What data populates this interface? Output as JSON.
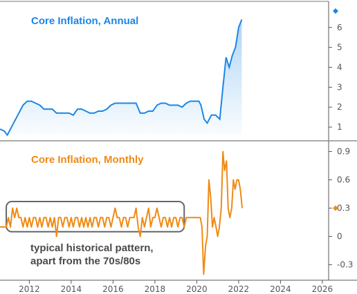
{
  "colors": {
    "annual": "#1a86e8",
    "monthly": "#f08a14",
    "axis": "#555555",
    "box": "#666666"
  },
  "chart_data": [
    {
      "type": "area",
      "title": "Core Inflation, Annual",
      "x_ticks": [
        "2012",
        "2014",
        "2016",
        "2018",
        "2020",
        "2022",
        "2024",
        "2026"
      ],
      "y_ticks": [
        "1",
        "2",
        "3",
        "4",
        "5",
        "6"
      ],
      "ylim": [
        0.45,
        7.1
      ],
      "xlim": [
        2010.6,
        2026.3
      ],
      "last_value_marker": 6.4,
      "series": [
        {
          "x": [
            2010.6,
            2010.8,
            2010.95,
            2011.1,
            2011.3,
            2011.5,
            2011.7,
            2011.9,
            2012.1,
            2012.3,
            2012.5,
            2012.7,
            2012.9,
            2013.1,
            2013.3,
            2013.5,
            2013.7,
            2013.9,
            2014.1,
            2014.3,
            2014.5,
            2014.7,
            2014.9,
            2015.1,
            2015.3,
            2015.5,
            2015.7,
            2015.9,
            2016.1,
            2016.3,
            2016.5,
            2016.7,
            2016.9,
            2017.1,
            2017.3,
            2017.5,
            2017.7,
            2017.9,
            2018.1,
            2018.3,
            2018.5,
            2018.7,
            2018.9,
            2019.1,
            2019.3,
            2019.5,
            2019.7,
            2019.9,
            2020.1,
            2020.2,
            2020.35,
            2020.5,
            2020.7,
            2020.9,
            2021.1,
            2021.25,
            2021.4,
            2021.55,
            2021.7,
            2021.85,
            2022.0,
            2022.15
          ],
          "values": [
            0.9,
            0.8,
            0.6,
            0.9,
            1.3,
            1.7,
            2.1,
            2.3,
            2.3,
            2.2,
            2.1,
            1.9,
            1.9,
            1.9,
            1.7,
            1.7,
            1.7,
            1.7,
            1.6,
            1.9,
            1.9,
            1.8,
            1.7,
            1.7,
            1.8,
            1.8,
            1.9,
            2.1,
            2.2,
            2.2,
            2.2,
            2.2,
            2.2,
            2.2,
            1.7,
            1.7,
            1.8,
            1.8,
            2.1,
            2.2,
            2.2,
            2.1,
            2.1,
            2.1,
            2.0,
            2.2,
            2.3,
            2.3,
            2.3,
            2.1,
            1.4,
            1.2,
            1.6,
            1.6,
            1.4,
            3.0,
            4.5,
            4.0,
            4.6,
            5.0,
            6.0,
            6.4
          ]
        }
      ]
    },
    {
      "type": "line",
      "title": "Core Inflation, Monthly",
      "x_ticks": [
        "2012",
        "2014",
        "2016",
        "2018",
        "2020",
        "2022",
        "2024",
        "2026"
      ],
      "y_ticks": [
        "-0.3",
        "0",
        "0.3",
        "0.6",
        "0.9"
      ],
      "ylim": [
        -0.42,
        0.97
      ],
      "xlim": [
        2010.6,
        2026.3
      ],
      "last_value_marker": 0.3,
      "series": [
        {
          "x": [
            2010.6,
            2010.9,
            2011.0,
            2011.1,
            2011.2,
            2011.3,
            2011.4,
            2011.5,
            2011.6,
            2011.7,
            2011.8,
            2011.9,
            2012.0,
            2012.1,
            2012.2,
            2012.3,
            2012.4,
            2012.5,
            2012.6,
            2012.7,
            2012.8,
            2012.9,
            2013.0,
            2013.1,
            2013.2,
            2013.3,
            2013.4,
            2013.5,
            2013.6,
            2013.7,
            2013.8,
            2013.9,
            2014.0,
            2014.1,
            2014.2,
            2014.3,
            2014.4,
            2014.5,
            2014.6,
            2014.7,
            2014.8,
            2014.9,
            2015.0,
            2015.1,
            2015.2,
            2015.3,
            2015.4,
            2015.5,
            2015.6,
            2015.7,
            2015.8,
            2015.9,
            2016.0,
            2016.1,
            2016.2,
            2016.3,
            2016.4,
            2016.5,
            2016.6,
            2016.7,
            2016.8,
            2016.9,
            2017.0,
            2017.1,
            2017.2,
            2017.3,
            2017.4,
            2017.5,
            2017.6,
            2017.7,
            2017.8,
            2017.9,
            2018.0,
            2018.1,
            2018.2,
            2018.3,
            2018.4,
            2018.5,
            2018.6,
            2018.7,
            2018.8,
            2018.9,
            2019.0,
            2019.1,
            2019.2,
            2019.3,
            2019.4,
            2019.5,
            2019.6,
            2019.7,
            2019.8,
            2019.9,
            2020.0,
            2020.08,
            2020.17,
            2020.25,
            2020.33,
            2020.42,
            2020.5,
            2020.58,
            2020.67,
            2020.75,
            2020.83,
            2020.92,
            2021.0,
            2021.08,
            2021.17,
            2021.25,
            2021.33,
            2021.42,
            2021.5,
            2021.58,
            2021.67,
            2021.75,
            2021.83,
            2021.92,
            2022.0,
            2022.08,
            2022.17
          ],
          "values": [
            0.1,
            0.1,
            0.2,
            0.1,
            0.3,
            0.2,
            0.3,
            0.2,
            0.2,
            0.1,
            0.2,
            0.1,
            0.2,
            0.1,
            0.2,
            0.2,
            0.1,
            0.2,
            0.1,
            0.2,
            0.2,
            0.1,
            0.2,
            0.1,
            0.2,
            0.0,
            0.2,
            0.2,
            0.1,
            0.2,
            0.2,
            0.1,
            0.2,
            0.1,
            0.2,
            0.2,
            0.1,
            0.2,
            0.1,
            0.2,
            0.1,
            0.2,
            0.1,
            0.2,
            0.2,
            0.1,
            0.2,
            0.2,
            0.1,
            0.2,
            0.2,
            0.1,
            0.2,
            0.3,
            0.2,
            0.2,
            0.1,
            0.2,
            0.2,
            0.1,
            0.2,
            0.2,
            0.2,
            0.3,
            0.1,
            0.0,
            0.2,
            0.1,
            0.2,
            0.3,
            0.1,
            0.2,
            0.2,
            0.3,
            0.2,
            0.1,
            0.2,
            0.2,
            0.1,
            0.2,
            0.1,
            0.2,
            0.2,
            0.1,
            0.2,
            0.2,
            0.1,
            0.2,
            0.2,
            0.2,
            0.2,
            0.2,
            0.2,
            0.2,
            0.2,
            0.1,
            -0.4,
            -0.1,
            0.0,
            0.6,
            0.4,
            0.1,
            0.2,
            0.1,
            0.0,
            0.1,
            0.3,
            0.9,
            0.7,
            0.8,
            0.3,
            0.2,
            0.3,
            0.6,
            0.5,
            0.6,
            0.6,
            0.5,
            0.3
          ]
        }
      ]
    }
  ],
  "annotation": {
    "line1": "typical historical pattern,",
    "line2": "apart from the 70s/80s",
    "box_x": [
      2010.9,
      2019.4
    ],
    "box_y": [
      0.05,
      0.37
    ]
  }
}
